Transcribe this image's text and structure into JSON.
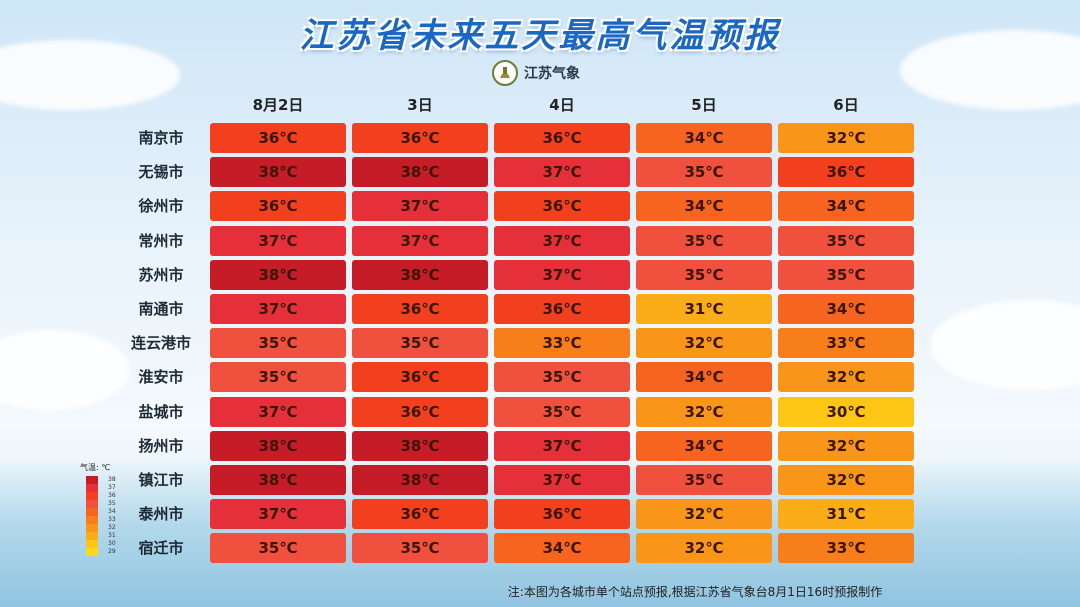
{
  "title": "江苏省未来五天最高气温预报",
  "logo_text": "江苏气象",
  "days": [
    "8月2日",
    "3日",
    "4日",
    "5日",
    "6日"
  ],
  "colors": {
    "38": "#c61c28",
    "37": "#e5303a",
    "36": "#f2401f",
    "35": "#f0513e",
    "34": "#f7641f",
    "33": "#f77e1a",
    "32": "#f99519",
    "31": "#fbad17",
    "30": "#fdc514",
    "29": "#fcd81b"
  },
  "rows": [
    {
      "city": "南京市",
      "temps": [
        36,
        36,
        36,
        34,
        32
      ],
      "labels": [
        "36℃",
        "36℃",
        "36℃",
        "34℃",
        "32℃"
      ]
    },
    {
      "city": "无锡市",
      "temps": [
        38,
        38,
        37,
        35,
        36
      ],
      "labels": [
        "38℃",
        "38℃",
        "37℃",
        "35℃",
        "36℃"
      ]
    },
    {
      "city": "徐州市",
      "temps": [
        36,
        37,
        36,
        34,
        34
      ],
      "labels": [
        "36℃",
        "37℃",
        "36℃",
        "34℃",
        "34℃"
      ]
    },
    {
      "city": "常州市",
      "temps": [
        37,
        37,
        37,
        35,
        35
      ],
      "labels": [
        "37℃",
        "37℃",
        "37℃",
        "35℃",
        "35℃"
      ]
    },
    {
      "city": "苏州市",
      "temps": [
        38,
        38,
        37,
        35,
        35
      ],
      "labels": [
        "38℃",
        "38℃",
        "37℃",
        "35℃",
        "35℃"
      ]
    },
    {
      "city": "南通市",
      "temps": [
        37,
        36,
        36,
        31,
        34
      ],
      "labels": [
        "37℃",
        "36℃",
        "36℃",
        "31℃",
        "34℃"
      ]
    },
    {
      "city": "连云港市",
      "temps": [
        35,
        35,
        33,
        32,
        33
      ],
      "labels": [
        "35℃",
        "35℃",
        "33℃",
        "32℃",
        "33℃"
      ]
    },
    {
      "city": "淮安市",
      "temps": [
        35,
        36,
        35,
        34,
        32
      ],
      "labels": [
        "35℃",
        "36℃",
        "35℃",
        "34℃",
        "32℃"
      ]
    },
    {
      "city": "盐城市",
      "temps": [
        37,
        36,
        35,
        32,
        30
      ],
      "labels": [
        "37℃",
        "36℃",
        "35℃",
        "32℃",
        "30℃"
      ]
    },
    {
      "city": "扬州市",
      "temps": [
        38,
        38,
        37,
        34,
        32
      ],
      "labels": [
        "38℃",
        "38℃",
        "37℃",
        "34℃",
        "32℃"
      ]
    },
    {
      "city": "镇江市",
      "temps": [
        38,
        38,
        37,
        35,
        32
      ],
      "labels": [
        "38℃",
        "38℃",
        "37℃",
        "35℃",
        "32℃"
      ]
    },
    {
      "city": "泰州市",
      "temps": [
        37,
        36,
        36,
        32,
        31
      ],
      "labels": [
        "37℃",
        "36℃",
        "36℃",
        "32℃",
        "31℃"
      ]
    },
    {
      "city": "宿迁市",
      "temps": [
        35,
        35,
        34,
        32,
        33
      ],
      "labels": [
        "35℃",
        "35℃",
        "34℃",
        "32℃",
        "33℃"
      ]
    }
  ],
  "legend": {
    "title": "气温: ℃",
    "levels": [
      "38",
      "37",
      "36",
      "35",
      "34",
      "33",
      "32",
      "31",
      "30",
      "29"
    ]
  },
  "note": "注:本图为各城市单个站点预报,根据江苏省气象台8月1日16时预报制作"
}
